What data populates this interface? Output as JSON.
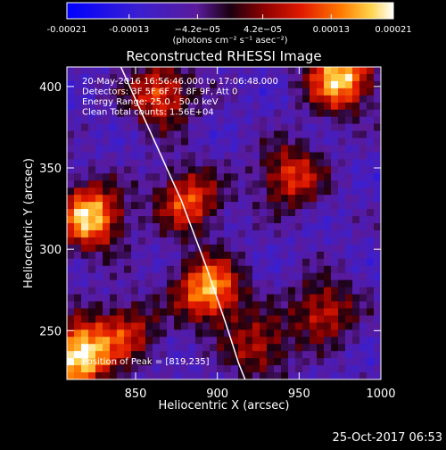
{
  "chart_data": {
    "type": "heatmap",
    "title": "Reconstructed RHESSI Image",
    "xlabel": "Heliocentric X (arcsec)",
    "ylabel": "Heliocentric Y (arcsec)",
    "xlim": [
      808,
      1000
    ],
    "ylim": [
      220,
      412
    ],
    "x_ticks": [
      "850",
      "900",
      "950",
      "1000"
    ],
    "x_tick_values": [
      850,
      900,
      950,
      1000
    ],
    "y_ticks": [
      "250",
      "300",
      "350",
      "400"
    ],
    "y_tick_values": [
      250,
      300,
      350,
      400
    ],
    "colorbar": {
      "tick_labels": [
        "-0.00021",
        "-0.00013",
        "−4.2e−05",
        "4.2e−05",
        "0.00013",
        "0.00021"
      ],
      "tick_values": [
        -0.00021,
        -0.00013,
        -4.2e-05,
        4.2e-05,
        0.00013,
        0.00021
      ],
      "range": [
        -0.00021,
        0.00021
      ],
      "unit_label": "(photons cm⁻² s⁻¹ asec⁻²)"
    },
    "annotations": [
      "20-May-2016 16:56:46.000 to 17:06:48.000",
      "Detectors: 3F 5F 6F 7F 8F 9F, Att 0",
      "Energy Range: 25.0 - 50.0 keV",
      "Clean     Total counts: 1.56E+04"
    ],
    "peak_text": "Position of Peak = [819,235]",
    "limb_curve": [
      [
        841,
        412
      ],
      [
        860,
        370
      ],
      [
        878,
        330
      ],
      [
        893,
        290
      ],
      [
        905,
        255
      ],
      [
        913,
        230
      ],
      [
        917,
        220
      ]
    ],
    "sources": [
      {
        "x": 815,
        "y": 235,
        "level": 0.95
      },
      {
        "x": 822,
        "y": 320,
        "level": 0.85
      },
      {
        "x": 882,
        "y": 330,
        "level": 0.6
      },
      {
        "x": 895,
        "y": 275,
        "level": 0.8
      },
      {
        "x": 865,
        "y": 395,
        "level": 0.6
      },
      {
        "x": 975,
        "y": 405,
        "level": 0.85
      },
      {
        "x": 945,
        "y": 345,
        "level": 0.55
      },
      {
        "x": 965,
        "y": 262,
        "level": 0.5
      },
      {
        "x": 845,
        "y": 250,
        "level": 0.45
      },
      {
        "x": 925,
        "y": 240,
        "level": 0.45
      }
    ]
  },
  "footer": {
    "timestamp": "25-Oct-2017 06:53"
  }
}
